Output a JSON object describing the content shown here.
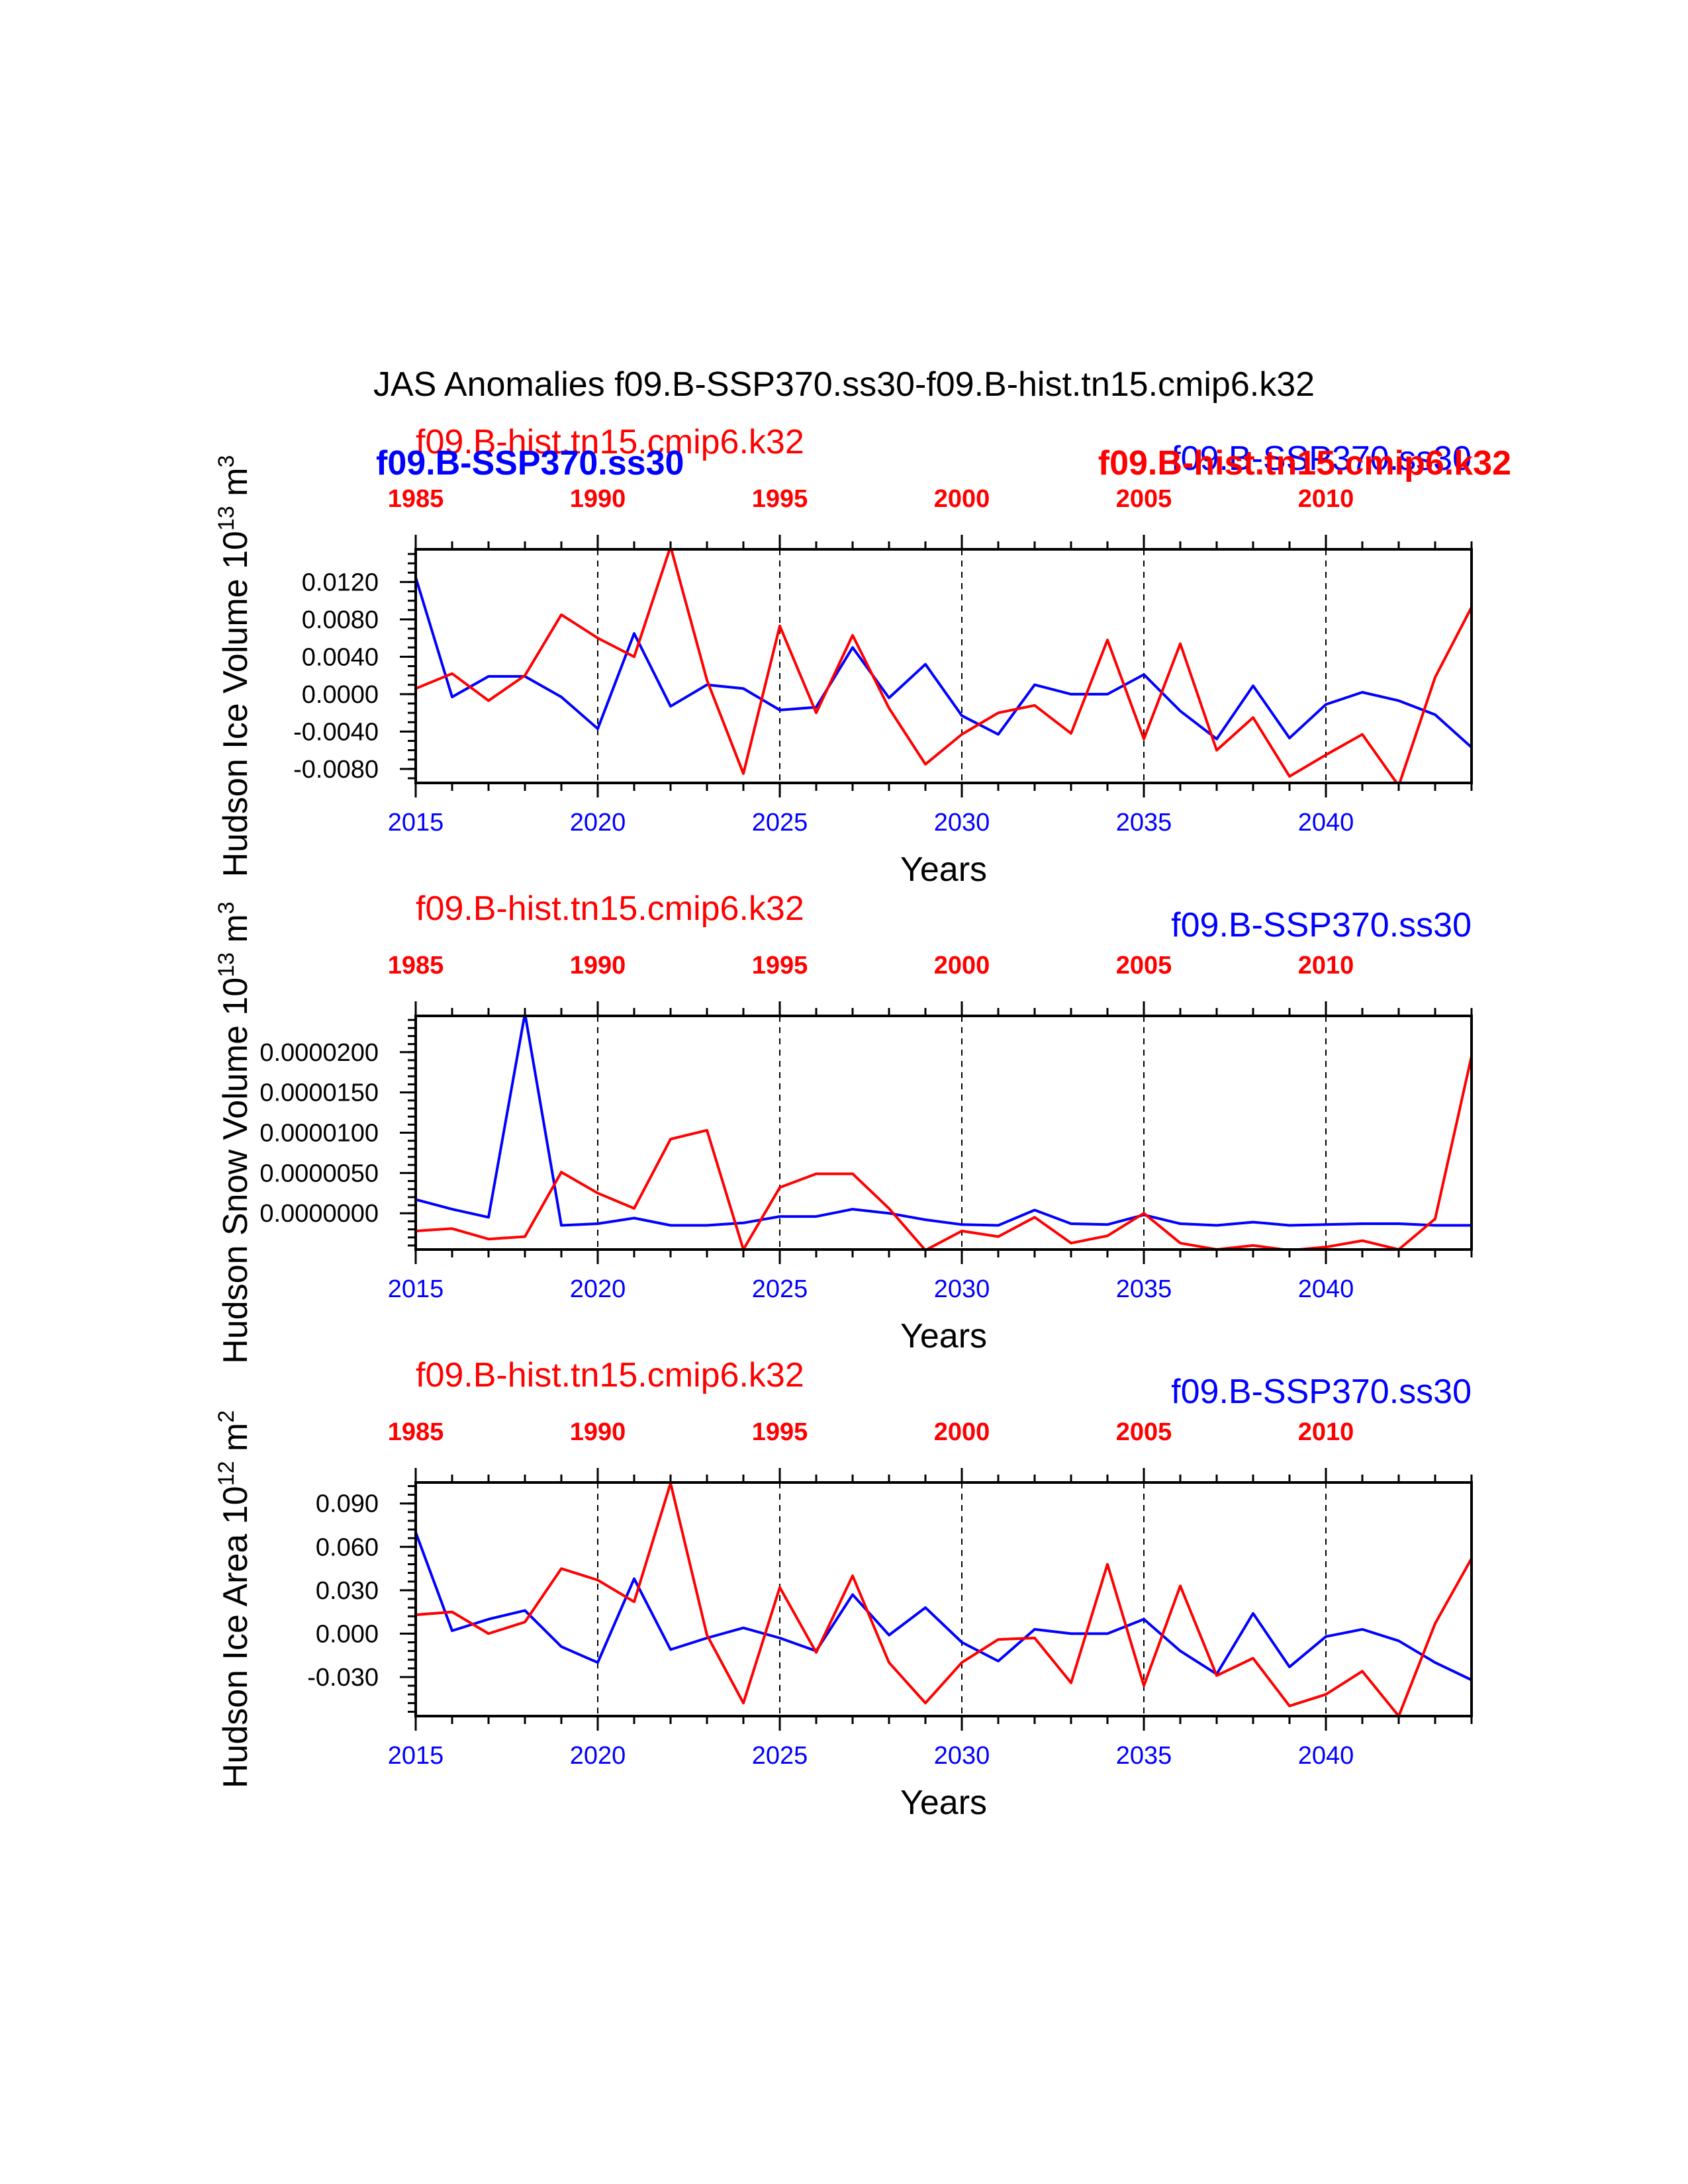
{
  "title": "JAS Anomalies f09.B-SSP370.ss30-f09.B-hist.tn15.cmip6.k32",
  "colors": {
    "hist": "#ff0000",
    "ssp": "#0000ff",
    "axis": "#000000"
  },
  "chart_data": [
    {
      "type": "line",
      "ylabel_text": "Hudson Ice Volume 10",
      "ylabel_exp": "13",
      "ylabel_unit": "m",
      "ylabel_unit_exp": "3",
      "xlabel": "Years",
      "top_label_hist": "f09.B-hist.tn15.cmip6.k32",
      "top_label_ssp": "f09.B-SSP370.ss30",
      "overlay_label_ssp": "f09.B-SSP370.ss30",
      "overlay_label_hist": "f09.B-hist.tn15.cmip6.k32",
      "xlim": [
        2015,
        2044
      ],
      "ylim": [
        -0.0095,
        0.0155
      ],
      "yticks": [
        -0.008,
        -0.004,
        0.0,
        0.004,
        0.008,
        0.012
      ],
      "ytick_labels": [
        "-0.0080",
        "-0.0040",
        "0.0000",
        "0.0040",
        "0.0080",
        "0.0120"
      ],
      "yminor": 0.001,
      "bottom_ticks": [
        2015,
        2020,
        2025,
        2030,
        2035,
        2040
      ],
      "bottom_tick_labels": [
        "2015",
        "2020",
        "2025",
        "2030",
        "2035",
        "2040"
      ],
      "top_tick_labels": [
        "1985",
        "1990",
        "1995",
        "2000",
        "2005",
        "2010"
      ],
      "x": [
        2015,
        2016,
        2017,
        2018,
        2019,
        2020,
        2021,
        2022,
        2023,
        2024,
        2025,
        2026,
        2027,
        2028,
        2029,
        2030,
        2031,
        2032,
        2033,
        2034,
        2035,
        2036,
        2037,
        2038,
        2039,
        2040,
        2041,
        2042,
        2043,
        2044
      ],
      "series": [
        {
          "name": "f09.B-SSP370.ss30",
          "color": "#0000ff",
          "values": [
            0.0125,
            -0.0003,
            0.0019,
            0.0019,
            -0.0003,
            -0.0037,
            0.0065,
            -0.0013,
            0.001,
            0.0006,
            -0.0017,
            -0.0014,
            0.005,
            -0.0004,
            0.0032,
            -0.0023,
            -0.0043,
            0.001,
            0.0,
            0.0,
            0.0021,
            -0.0018,
            -0.0048,
            0.0009,
            -0.0047,
            -0.0011,
            0.0002,
            -0.0007,
            -0.0022,
            -0.0057
          ]
        },
        {
          "name": "f09.B-hist.tn15.cmip6.k32",
          "color": "#ff0000",
          "values": [
            0.0006,
            0.0022,
            -0.0007,
            0.002,
            0.0085,
            0.006,
            0.004,
            0.0158,
            0.0015,
            -0.0085,
            0.0073,
            -0.002,
            0.0063,
            -0.0015,
            -0.0075,
            -0.0043,
            -0.002,
            -0.0012,
            -0.0042,
            0.0058,
            -0.0048,
            0.0054,
            -0.006,
            -0.0025,
            -0.0088,
            -0.0065,
            -0.0043,
            -0.0098,
            0.0018,
            0.0093
          ]
        }
      ]
    },
    {
      "type": "line",
      "ylabel_text": "Hudson Snow Volume 10",
      "ylabel_exp": "13",
      "ylabel_unit": "m",
      "ylabel_unit_exp": "3",
      "xlabel": "Years",
      "top_label_hist": "f09.B-hist.tn15.cmip6.k32",
      "top_label_ssp": "f09.B-SSP370.ss30",
      "xlim": [
        2015,
        2044
      ],
      "ylim": [
        -4.5e-06,
        2.45e-05
      ],
      "yticks": [
        0.0,
        5e-06,
        1e-05,
        1.5e-05,
        2e-05
      ],
      "ytick_labels": [
        "0.0000000",
        "0.0000050",
        "0.0000100",
        "0.0000150",
        "0.0000200"
      ],
      "yminor": 1e-06,
      "bottom_ticks": [
        2015,
        2020,
        2025,
        2030,
        2035,
        2040
      ],
      "bottom_tick_labels": [
        "2015",
        "2020",
        "2025",
        "2030",
        "2035",
        "2040"
      ],
      "top_tick_labels": [
        "1985",
        "1990",
        "1995",
        "2000",
        "2005",
        "2010"
      ],
      "x": [
        2015,
        2016,
        2017,
        2018,
        2019,
        2020,
        2021,
        2022,
        2023,
        2024,
        2025,
        2026,
        2027,
        2028,
        2029,
        2030,
        2031,
        2032,
        2033,
        2034,
        2035,
        2036,
        2037,
        2038,
        2039,
        2040,
        2041,
        2042,
        2043,
        2044
      ],
      "series": [
        {
          "name": "f09.B-SSP370.ss30",
          "color": "#0000ff",
          "values": [
            1.7e-06,
            5e-07,
            -5e-07,
            2.48e-05,
            -1.5e-06,
            -1.3e-06,
            -6e-07,
            -1.5e-06,
            -1.5e-06,
            -1.2e-06,
            -4e-07,
            -4e-07,
            5e-07,
            0.0,
            -8e-07,
            -1.4e-06,
            -1.5e-06,
            4e-07,
            -1.3e-06,
            -1.4e-06,
            -2e-07,
            -1.3e-06,
            -1.5e-06,
            -1.1e-06,
            -1.5e-06,
            -1.4e-06,
            -1.3e-06,
            -1.3e-06,
            -1.5e-06,
            -1.5e-06
          ]
        },
        {
          "name": "f09.B-hist.tn15.cmip6.k32",
          "color": "#ff0000",
          "values": [
            -2.2e-06,
            -1.9e-06,
            -3.2e-06,
            -2.9e-06,
            5.1e-06,
            2.5e-06,
            6e-07,
            9.2e-06,
            1.03e-05,
            -4.5e-06,
            3.2e-06,
            4.9e-06,
            4.9e-06,
            6e-07,
            -4.6e-06,
            -2.2e-06,
            -2.9e-06,
            -5e-07,
            -3.7e-06,
            -2.8e-06,
            0.0,
            -3.7e-06,
            -4.5e-06,
            -4e-06,
            -4.6e-06,
            -4.2e-06,
            -3.4e-06,
            -4.5e-06,
            -7e-07,
            1.95e-05
          ]
        }
      ]
    },
    {
      "type": "line",
      "ylabel_text": "Hudson Ice Area 10",
      "ylabel_exp": "12",
      "ylabel_unit": "m",
      "ylabel_unit_exp": "2",
      "xlabel": "Years",
      "top_label_hist": "f09.B-hist.tn15.cmip6.k32",
      "top_label_ssp": "f09.B-SSP370.ss30",
      "xlim": [
        2015,
        2044
      ],
      "ylim": [
        -0.057,
        0.1045
      ],
      "yticks": [
        -0.03,
        0.0,
        0.03,
        0.06,
        0.09
      ],
      "ytick_labels": [
        "-0.030",
        "0.000",
        "0.030",
        "0.060",
        "0.090"
      ],
      "yminor": 0.006,
      "bottom_ticks": [
        2015,
        2020,
        2025,
        2030,
        2035,
        2040
      ],
      "bottom_tick_labels": [
        "2015",
        "2020",
        "2025",
        "2030",
        "2035",
        "2040"
      ],
      "top_tick_labels": [
        "1985",
        "1990",
        "1995",
        "2000",
        "2005",
        "2010"
      ],
      "x": [
        2015,
        2016,
        2017,
        2018,
        2019,
        2020,
        2021,
        2022,
        2023,
        2024,
        2025,
        2026,
        2027,
        2028,
        2029,
        2030,
        2031,
        2032,
        2033,
        2034,
        2035,
        2036,
        2037,
        2038,
        2039,
        2040,
        2041,
        2042,
        2043,
        2044
      ],
      "series": [
        {
          "name": "f09.B-SSP370.ss30",
          "color": "#0000ff",
          "values": [
            0.07,
            0.002,
            0.01,
            0.016,
            -0.009,
            -0.02,
            0.038,
            -0.011,
            -0.003,
            0.004,
            -0.003,
            -0.012,
            0.027,
            -0.001,
            0.018,
            -0.006,
            -0.019,
            0.003,
            0.0,
            0.0,
            0.01,
            -0.012,
            -0.028,
            0.014,
            -0.023,
            -0.002,
            0.003,
            -0.005,
            -0.02,
            -0.032
          ]
        },
        {
          "name": "f09.B-hist.tn15.cmip6.k32",
          "color": "#ff0000",
          "values": [
            0.013,
            0.015,
            0.0,
            0.008,
            0.045,
            0.037,
            0.022,
            0.104,
            -0.001,
            -0.048,
            0.032,
            -0.013,
            0.04,
            -0.02,
            -0.048,
            -0.02,
            -0.004,
            -0.003,
            -0.034,
            0.048,
            -0.036,
            0.033,
            -0.029,
            -0.017,
            -0.05,
            -0.042,
            -0.026,
            -0.057,
            0.007,
            0.052
          ]
        }
      ]
    }
  ]
}
